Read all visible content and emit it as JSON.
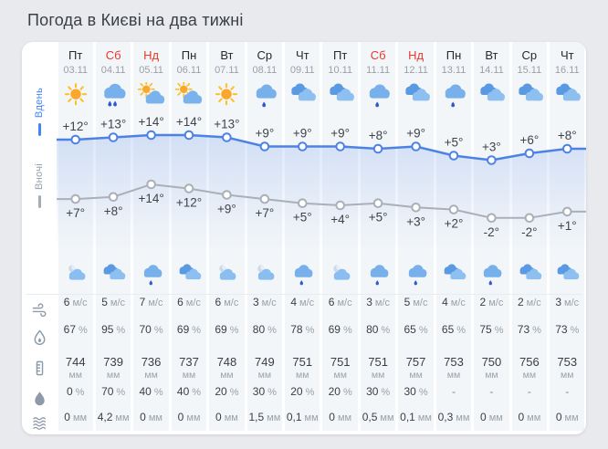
{
  "page_title": "Погода в Києві на два тижні",
  "tabs": {
    "day": "Вдень",
    "night": "Вночі"
  },
  "units": {
    "wind": "м/с",
    "humidity": "%",
    "pressure": "мм",
    "precip": "мм"
  },
  "row_icons": [
    "wind-icon",
    "humidity-icon",
    "pressure-icon",
    "precip-chance-icon",
    "precip-amount-icon"
  ],
  "colors": {
    "accent_day_line": "#4d82e4",
    "night_line": "#a9b0b8",
    "weekend_red": "#e5392c",
    "stripe": "#f3f6f9",
    "page_bg": "#e9eaee"
  },
  "columns": [
    {
      "day": "Пт",
      "date": "03.11",
      "weekend": false,
      "day_icon": "sun",
      "night_icon": "moon-cloud",
      "wind": "6",
      "humidity": "67",
      "pressure": "744",
      "pop": "0%",
      "precip": "0"
    },
    {
      "day": "Сб",
      "date": "04.11",
      "weekend": true,
      "day_icon": "rain-2",
      "night_icon": "clouds",
      "wind": "5",
      "humidity": "95",
      "pressure": "739",
      "pop": "70%",
      "precip": "4,2"
    },
    {
      "day": "Нд",
      "date": "05.11",
      "weekend": true,
      "day_icon": "sun-cloud",
      "night_icon": "rain-1",
      "wind": "7",
      "humidity": "70",
      "pressure": "736",
      "pop": "40%",
      "precip": "0"
    },
    {
      "day": "Пн",
      "date": "06.11",
      "weekend": false,
      "day_icon": "sun-cloud",
      "night_icon": "clouds",
      "wind": "6",
      "humidity": "69",
      "pressure": "737",
      "pop": "40%",
      "precip": "0"
    },
    {
      "day": "Вт",
      "date": "07.11",
      "weekend": false,
      "day_icon": "sun",
      "night_icon": "moon-cloud",
      "wind": "6",
      "humidity": "69",
      "pressure": "748",
      "pop": "20%",
      "precip": "0"
    },
    {
      "day": "Ср",
      "date": "08.11",
      "weekend": false,
      "day_icon": "rain-1",
      "night_icon": "moon-cloud",
      "wind": "3",
      "humidity": "80",
      "pressure": "749",
      "pop": "30%",
      "precip": "1,5"
    },
    {
      "day": "Чт",
      "date": "09.11",
      "weekend": false,
      "day_icon": "clouds",
      "night_icon": "rain-1",
      "wind": "4",
      "humidity": "78",
      "pressure": "751",
      "pop": "20%",
      "precip": "0,1"
    },
    {
      "day": "Пт",
      "date": "10.11",
      "weekend": false,
      "day_icon": "clouds",
      "night_icon": "moon-cloud",
      "wind": "6",
      "humidity": "69",
      "pressure": "751",
      "pop": "20%",
      "precip": "0"
    },
    {
      "day": "Сб",
      "date": "11.11",
      "weekend": true,
      "day_icon": "rain-1",
      "night_icon": "rain-1",
      "wind": "3",
      "humidity": "80",
      "pressure": "751",
      "pop": "30%",
      "precip": "0,5"
    },
    {
      "day": "Нд",
      "date": "12.11",
      "weekend": true,
      "day_icon": "clouds",
      "night_icon": "rain-1",
      "wind": "5",
      "humidity": "65",
      "pressure": "757",
      "pop": "30%",
      "precip": "0,1"
    },
    {
      "day": "Пн",
      "date": "13.11",
      "weekend": false,
      "day_icon": "rain-1",
      "night_icon": "clouds",
      "wind": "4",
      "humidity": "65",
      "pressure": "753",
      "pop": "-",
      "precip": "0,3"
    },
    {
      "day": "Вт",
      "date": "14.11",
      "weekend": false,
      "day_icon": "clouds",
      "night_icon": "rain-1",
      "wind": "2",
      "humidity": "75",
      "pressure": "750",
      "pop": "-",
      "precip": "0"
    },
    {
      "day": "Ср",
      "date": "15.11",
      "weekend": false,
      "day_icon": "clouds",
      "night_icon": "clouds",
      "wind": "2",
      "humidity": "73",
      "pressure": "756",
      "pop": "-",
      "precip": "0"
    },
    {
      "day": "Чт",
      "date": "16.11",
      "weekend": false,
      "day_icon": "clouds",
      "night_icon": "clouds",
      "wind": "3",
      "humidity": "73",
      "pressure": "753",
      "pop": "-",
      "precip": "0"
    }
  ],
  "chart_data": {
    "type": "line",
    "categories": [
      "03.11",
      "04.11",
      "05.11",
      "06.11",
      "07.11",
      "08.11",
      "09.11",
      "10.11",
      "11.11",
      "12.11",
      "13.11",
      "14.11",
      "15.11",
      "16.11"
    ],
    "series": [
      {
        "name": "Вдень",
        "values": [
          12,
          13,
          14,
          14,
          13,
          9,
          9,
          9,
          8,
          9,
          5,
          3,
          6,
          8
        ]
      },
      {
        "name": "Вночі",
        "values": [
          7,
          8,
          14,
          12,
          9,
          7,
          5,
          4,
          5,
          3,
          2,
          -2,
          -2,
          1
        ]
      }
    ],
    "ylabel": "°C",
    "legend_position": "left",
    "grid": false
  }
}
